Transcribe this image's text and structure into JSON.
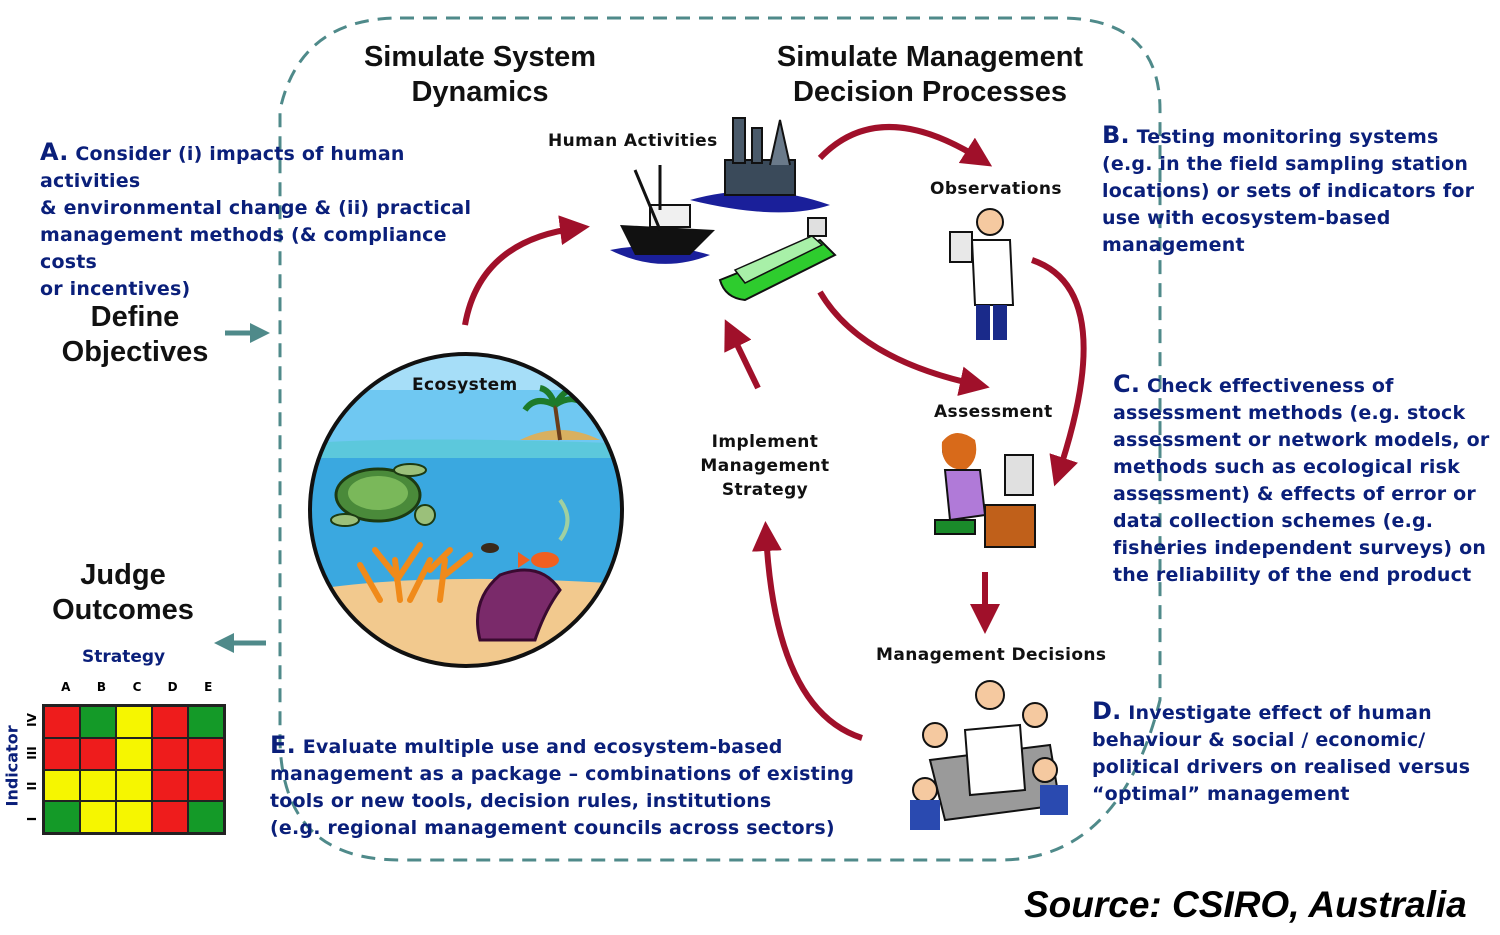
{
  "headers": {
    "system_dynamics": [
      "Simulate System",
      "Dynamics"
    ],
    "management": [
      "Simulate Management",
      "Decision Processes"
    ]
  },
  "side": {
    "define": [
      "Define",
      "Objectives"
    ],
    "judge": [
      "Judge",
      "Outcomes"
    ]
  },
  "notes": {
    "A": {
      "letter": "A.",
      "lines": [
        " Consider (i) impacts of human activities",
        "& environmental change & (ii) practical",
        "management methods (& compliance costs",
        "or incentives)"
      ]
    },
    "B": {
      "letter": "B.",
      "lines": [
        " Testing monitoring systems",
        "(e.g. in the field sampling station",
        "locations) or sets of indicators for",
        "use with ecosystem-based",
        "management"
      ]
    },
    "C": {
      "letter": "C.",
      "lines": [
        " Check effectiveness of",
        "assessment methods (e.g. stock",
        "assessment or network models, or",
        "methods such as ecological risk",
        "assessment) & effects of error or",
        "data collection schemes (e.g.",
        "fisheries independent surveys) on",
        "the reliability of the end product"
      ]
    },
    "D": {
      "letter": "D.",
      "lines": [
        " Investigate effect of human",
        "behaviour & social / economic/",
        "political drivers on realised versus",
        "“optimal” management"
      ]
    },
    "E": {
      "letter": "E.",
      "lines": [
        " Evaluate multiple use and ecosystem-based",
        "management as a package – combinations of existing",
        "tools or new tools, decision rules, institutions",
        "(e.g. regional management councils across sectors)"
      ]
    }
  },
  "labels": {
    "human_activities": "Human Activities",
    "observations": "Observations",
    "assessment": "Assessment",
    "management_decisions": "Management Decisions",
    "ecosystem": "Ecosystem",
    "implement": [
      "Implement",
      "Management",
      "Strategy"
    ]
  },
  "matrix": {
    "title": "Strategy",
    "columns": [
      "A",
      "B",
      "C",
      "D",
      "E"
    ],
    "rows_label": "Indicator",
    "rows": [
      "IV",
      "III",
      "II",
      "I"
    ],
    "cells": [
      [
        "red",
        "green",
        "yellow",
        "red",
        "green"
      ],
      [
        "red",
        "red",
        "yellow",
        "red",
        "red"
      ],
      [
        "yellow",
        "yellow",
        "yellow",
        "red",
        "red"
      ],
      [
        "green",
        "yellow",
        "yellow",
        "red",
        "green"
      ]
    ],
    "colors": {
      "red": "#ee1c1c",
      "green": "#149a28",
      "yellow": "#f6f600"
    }
  },
  "source": "Source: CSIRO, Australia",
  "colors": {
    "arrow": "#a0102a",
    "dash": "#4f8a8a",
    "note_text": "#0a1f7a"
  }
}
